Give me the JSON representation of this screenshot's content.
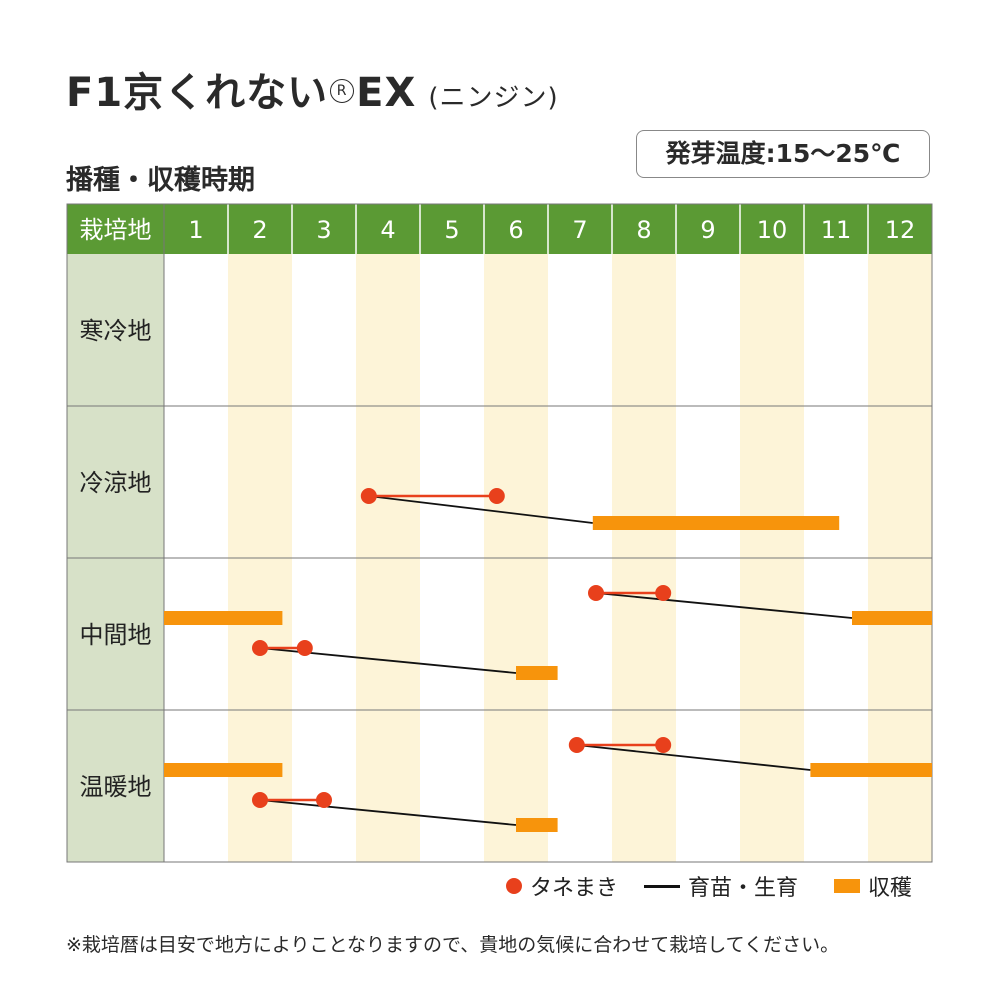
{
  "title": {
    "main": "F1京くれない",
    "reg_mark": "R",
    "main_suffix": "EX",
    "sub": "(ニンジン)"
  },
  "subtitle": "播種・収穫時期",
  "temperature_note": "発芽温度:15～25℃",
  "colors": {
    "header_green": "#5b9a34",
    "region_cell": "#d7e1c8",
    "month_shade": "#fdf4d8",
    "sowing": "#e8401c",
    "harvest": "#f7940c",
    "growth_line": "#111111"
  },
  "chart_data": {
    "type": "gantt",
    "header_label": "栽培地",
    "months": [
      "1",
      "2",
      "3",
      "4",
      "5",
      "6",
      "7",
      "8",
      "9",
      "10",
      "11",
      "12"
    ],
    "regions": [
      {
        "name": "寒冷地",
        "schedules": []
      },
      {
        "name": "冷涼地",
        "schedules": [
          {
            "sow": [
              4.2,
              6.2
            ],
            "harvest": [
              7.7,
              11.55
            ]
          }
        ]
      },
      {
        "name": "中間地",
        "schedules": [
          {
            "sow": [
              7.75,
              8.8
            ],
            "harvest_segments": [
              [
                11.75,
                13.0
              ],
              [
                1.0,
                2.85
              ]
            ]
          },
          {
            "sow": [
              2.5,
              3.2
            ],
            "harvest": [
              6.5,
              7.15
            ]
          }
        ]
      },
      {
        "name": "温暖地",
        "schedules": [
          {
            "sow": [
              7.45,
              8.8
            ],
            "harvest_segments": [
              [
                11.1,
                13.0
              ],
              [
                1.0,
                2.85
              ]
            ]
          },
          {
            "sow": [
              2.5,
              3.5
            ],
            "harvest": [
              6.5,
              7.15
            ]
          }
        ]
      }
    ]
  },
  "legend": {
    "sowing": "タネまき",
    "growth": "育苗・生育",
    "harvest": "収穫"
  },
  "footnote": "※栽培暦は目安で地方によりことなりますので、貴地の気候に合わせて栽培してください。"
}
